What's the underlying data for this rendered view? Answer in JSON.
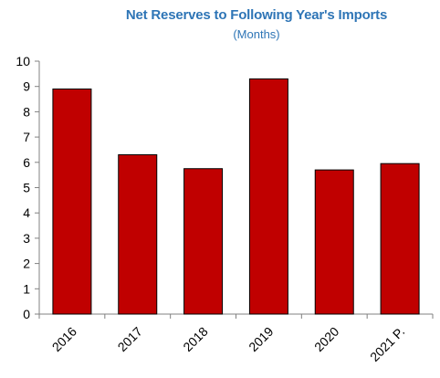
{
  "chart_data": {
    "type": "bar",
    "title": "Net Reserves to Following Year's Imports",
    "subtitle": "(Months)",
    "categories": [
      "2016",
      "2017",
      "2018",
      "2019",
      "2020",
      "2021 P."
    ],
    "values": [
      8.9,
      6.3,
      5.75,
      9.3,
      5.7,
      5.95
    ],
    "ylim": [
      0,
      10
    ],
    "yticks": [
      0,
      1,
      2,
      3,
      4,
      5,
      6,
      7,
      8,
      9,
      10
    ],
    "xlabel": "",
    "ylabel": "",
    "grid": false,
    "legend": "none",
    "colors": {
      "bar": "#c00000",
      "bar_edge": "#000000",
      "title": "#2e75b6",
      "axis": "#808080",
      "text": "#000000"
    }
  }
}
